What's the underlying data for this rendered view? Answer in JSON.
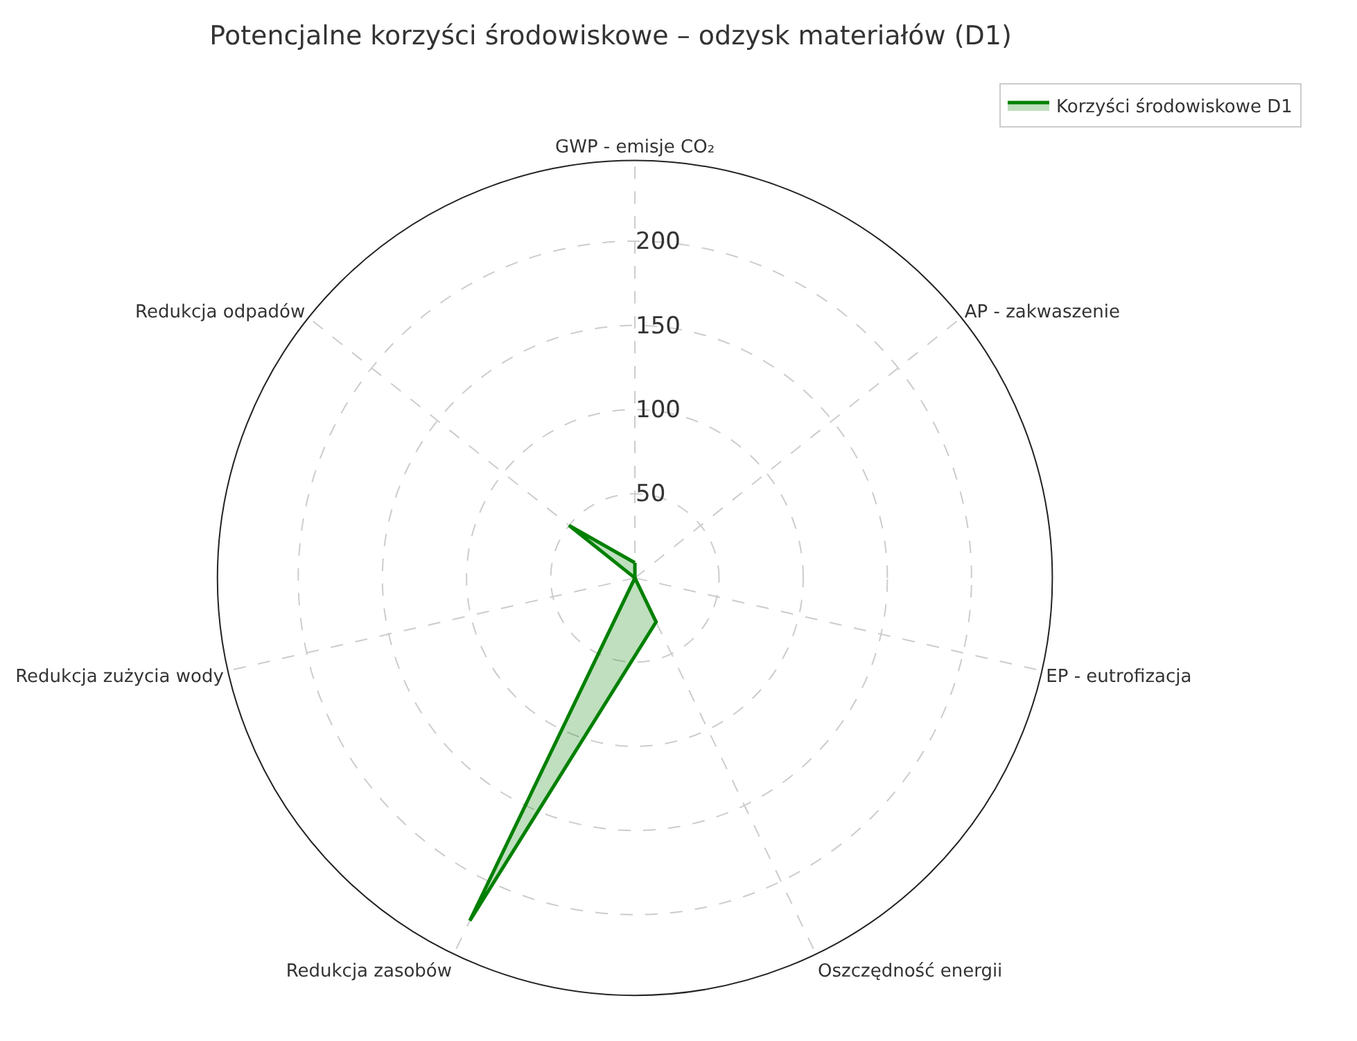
{
  "chart_data": {
    "type": "radar",
    "title": "Potencjalne korzyści środowiskowe – odzysk materiałów (D1)",
    "categories": [
      "GWP - emisje CO₂",
      "AP - zakwaszenie",
      "EP - eutrofizacja",
      "Oszczędność energii",
      "Redukcja zasobów",
      "Redukcja zużycia wody",
      "Redukcja odpadów"
    ],
    "series": [
      {
        "name": "Korzyści środowiskowe D1",
        "color": "#008000",
        "values": [
          9,
          0,
          0,
          29,
          226,
          0,
          50
        ]
      }
    ],
    "ylim": [
      0,
      248
    ],
    "yticks": [
      50,
      100,
      150,
      200
    ],
    "grid": true,
    "legend": "top right",
    "line_style": "solid",
    "marker": "none"
  }
}
